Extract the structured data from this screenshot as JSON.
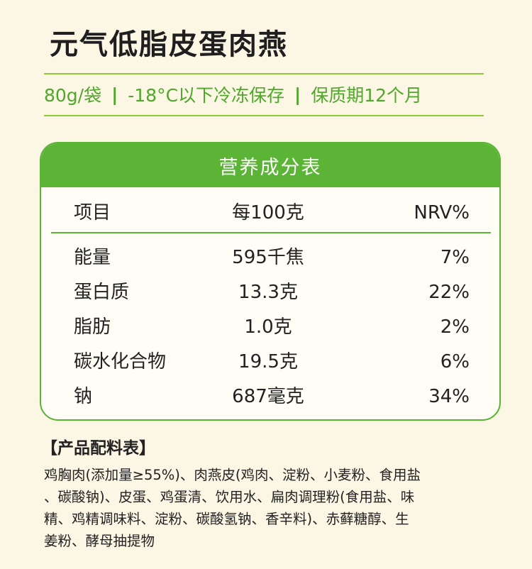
{
  "title": "元气低脂皮蛋肉燕",
  "spec": {
    "weight": "80g/袋",
    "separator": "|",
    "storage": "-18°C以下冷冻保存",
    "shelf_life": "保质期12个月"
  },
  "nutrition": {
    "heading": "营养成分表",
    "columns": [
      "项目",
      "每100克",
      "NRV%"
    ],
    "rows": [
      {
        "item": "能量",
        "per100g": "595千焦",
        "nrv": "7%"
      },
      {
        "item": "蛋白质",
        "per100g": "13.3克",
        "nrv": "22%"
      },
      {
        "item": "脂肪",
        "per100g": "1.0克",
        "nrv": "2%"
      },
      {
        "item": "碳水化合物",
        "per100g": "19.5克",
        "nrv": "6%"
      },
      {
        "item": "钠",
        "per100g": "687毫克",
        "nrv": "34%"
      }
    ]
  },
  "ingredients": {
    "heading": "【产品配料表】",
    "lines": [
      "鸡胸肉(添加量≥55%)、肉燕皮(鸡肉、淀粉、小麦粉、食用盐",
      "、碳酸钠)、皮蛋、鸡蛋清、饮用水、扁肉调理粉(食用盐、味",
      "精、鸡精调味料、淀粉、碳酸氢钠、香辛料)、赤藓糖醇、生",
      "姜粉、酵母抽提物"
    ]
  },
  "colors": {
    "accent_green": "#5bb435",
    "spec_text": "#4fa72b",
    "background": "#fcf6e4"
  }
}
